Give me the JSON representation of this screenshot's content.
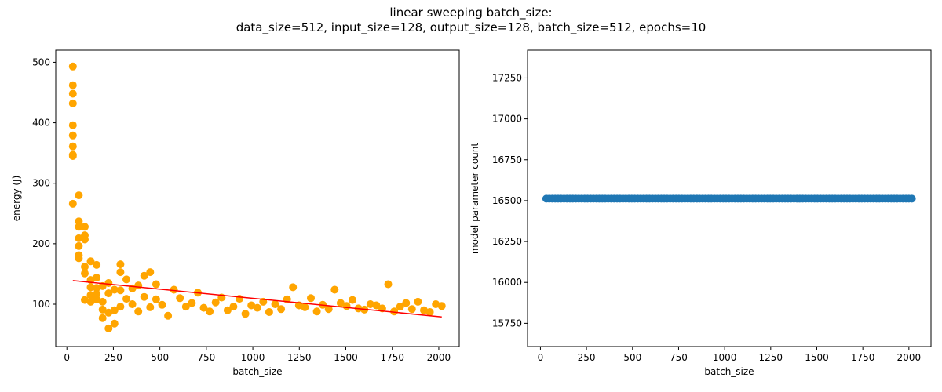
{
  "figure": {
    "suptitle_line1": "linear sweeping batch_size:",
    "suptitle_line2": "data_size=512, input_size=128, output_size=128, batch_size=512, epochs=10"
  },
  "chart_data": [
    {
      "type": "scatter",
      "title": "",
      "xlabel": "batch_size",
      "ylabel": "energy (J)",
      "xlim": [
        -60,
        2110
      ],
      "ylim": [
        30,
        520
      ],
      "xticks": [
        0,
        250,
        500,
        750,
        1000,
        1250,
        1500,
        1750,
        2000
      ],
      "yticks": [
        100,
        200,
        300,
        400,
        500
      ],
      "grid": false,
      "marker_color": "#ffa500",
      "fit_line_color": "#ff0000",
      "series": [
        {
          "x": [
            32,
            32,
            32,
            32,
            32,
            32,
            32,
            32,
            32,
            32,
            64,
            64,
            64,
            64,
            64,
            64,
            64,
            96,
            96,
            96,
            96,
            96,
            96,
            128,
            128,
            128,
            128,
            128,
            160,
            160,
            160,
            160,
            160,
            192,
            192,
            192,
            192,
            224,
            224,
            224,
            224,
            256,
            256,
            256,
            288,
            288,
            288,
            288,
            320,
            320,
            352,
            352,
            384,
            384,
            416,
            416,
            448,
            448,
            480,
            480,
            512,
            544,
            576,
            608,
            640,
            672,
            704,
            736,
            768,
            800,
            832,
            864,
            896,
            928,
            960,
            992,
            1024,
            1056,
            1088,
            1120,
            1152,
            1184,
            1216,
            1248,
            1280,
            1312,
            1344,
            1376,
            1408,
            1440,
            1472,
            1504,
            1536,
            1568,
            1600,
            1632,
            1664,
            1696,
            1728,
            1760,
            1792,
            1824,
            1856,
            1888,
            1920,
            1952,
            1984,
            2016
          ],
          "y": [
            493,
            462,
            448,
            432,
            396,
            379,
            361,
            347,
            345,
            266,
            280,
            237,
            228,
            209,
            196,
            181,
            176,
            228,
            214,
            207,
            162,
            151,
            107,
            171,
            140,
            128,
            115,
            104,
            165,
            144,
            127,
            117,
            108,
            130,
            104,
            91,
            77,
            135,
            118,
            86,
            60,
            124,
            90,
            68,
            166,
            153,
            123,
            96,
            141,
            109,
            126,
            100,
            131,
            88,
            147,
            112,
            153,
            95,
            133,
            108,
            99,
            81,
            124,
            110,
            96,
            102,
            119,
            94,
            88,
            103,
            111,
            90,
            96,
            109,
            84,
            98,
            94,
            104,
            87,
            100,
            92,
            108,
            128,
            98,
            95,
            110,
            88,
            99,
            92,
            124,
            102,
            97,
            107,
            93,
            91,
            100,
            98,
            93,
            133,
            88,
            96,
            102,
            92,
            104,
            90,
            87,
            100,
            97
          ]
        }
      ],
      "fit_line": {
        "x": [
          32,
          2016
        ],
        "y": [
          139,
          79
        ]
      }
    },
    {
      "type": "scatter",
      "title": "",
      "xlabel": "batch_size",
      "ylabel": "model parameter count",
      "xlim": [
        -70,
        2120
      ],
      "ylim": [
        15608,
        17420
      ],
      "xticks": [
        0,
        250,
        500,
        750,
        1000,
        1250,
        1500,
        1750,
        2000
      ],
      "yticks": [
        15750,
        16000,
        16250,
        16500,
        16750,
        17000,
        17250
      ],
      "grid": false,
      "marker_color": "#1f77b4",
      "series": [
        {
          "x_start": 32,
          "x_end": 2016,
          "x_step": 16,
          "constant_y": 16512
        }
      ]
    }
  ]
}
